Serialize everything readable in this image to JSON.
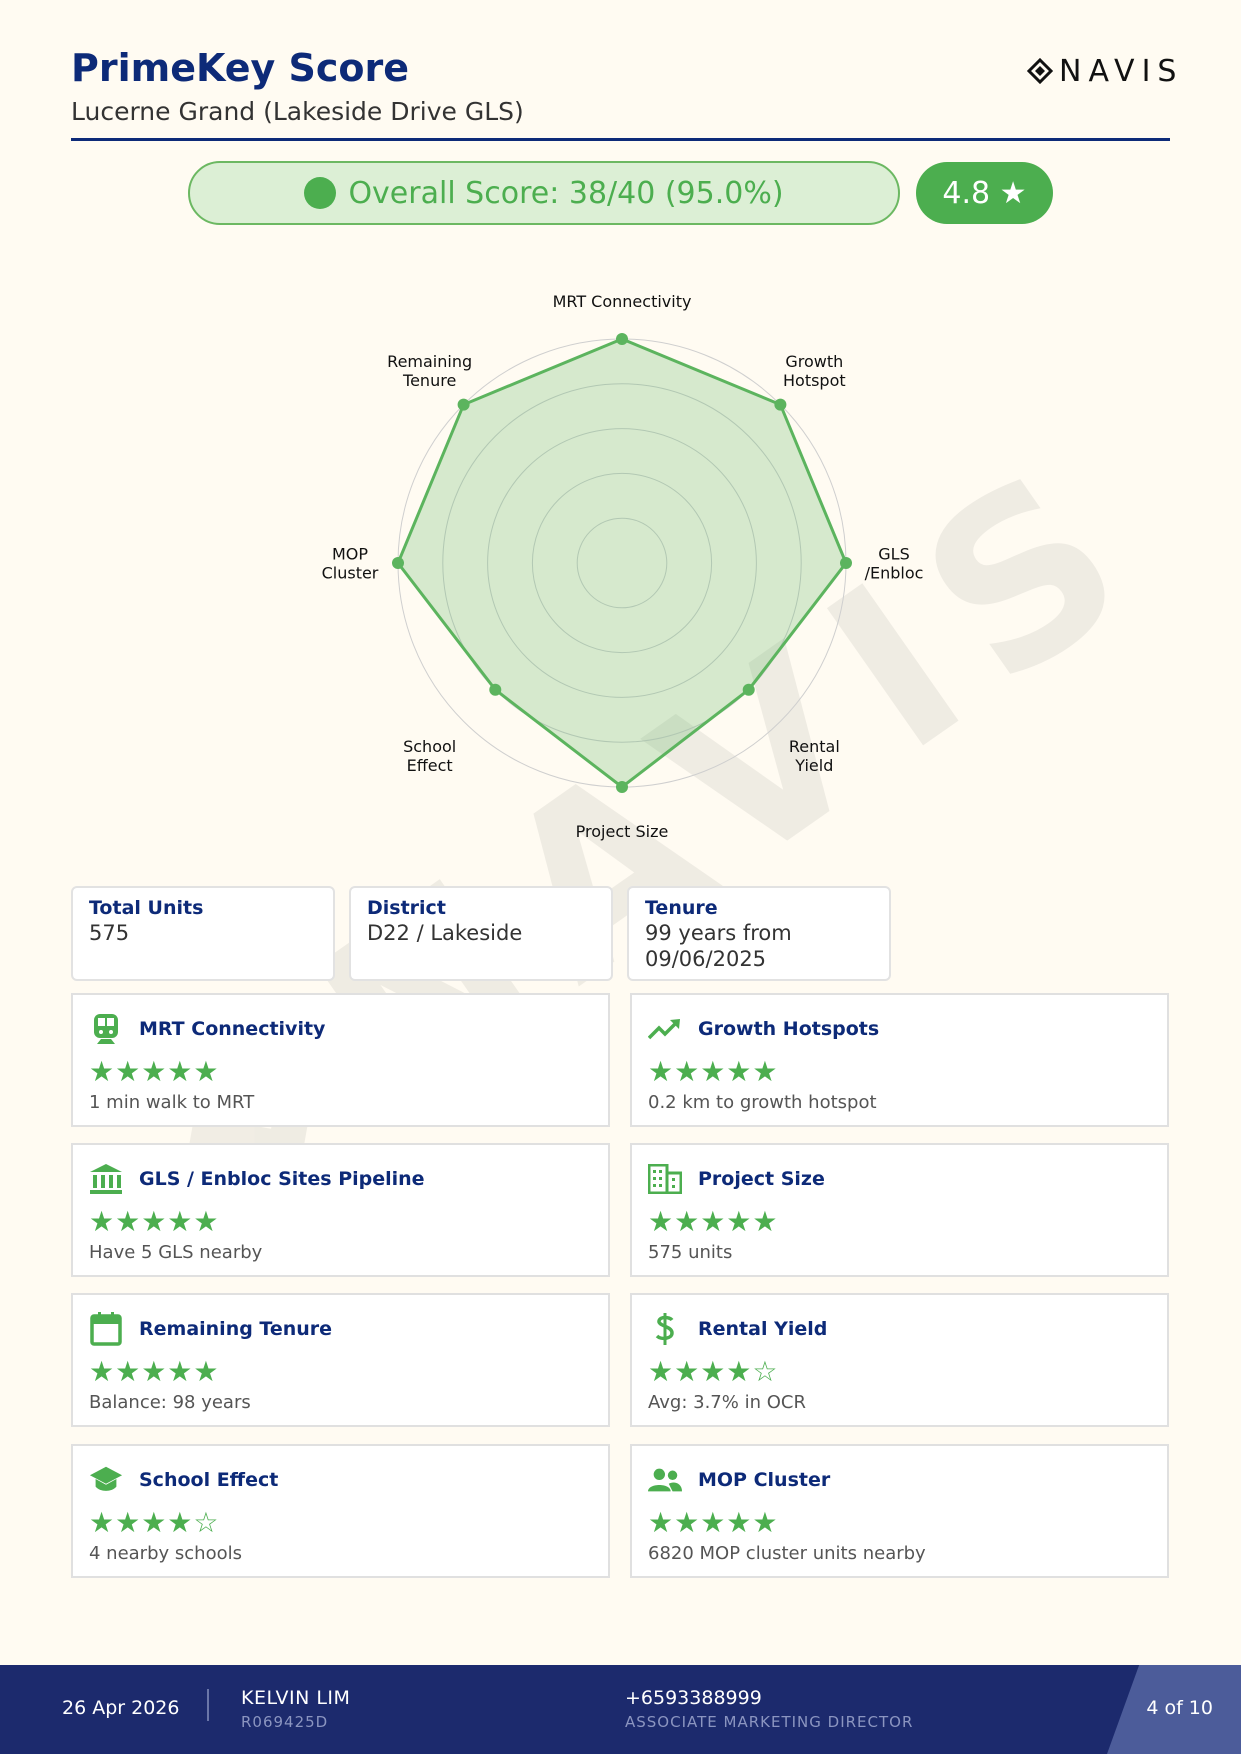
{
  "header": {
    "title": "PrimeKey Score",
    "subtitle": "Lucerne Grand (Lakeside Drive GLS)",
    "logo_text": "NAVIS"
  },
  "score": {
    "label": "Overall Score: 38/40 (95.0%)",
    "rating": "4.8 ★"
  },
  "chart_data": {
    "type": "radar",
    "axes": [
      "MRT Connectivity",
      "Growth Hotspot",
      "GLS /Enbloc",
      "Rental Yield",
      "Project Size",
      "School Effect",
      "MOP Cluster",
      "Remaining Tenure"
    ],
    "axis_labels": [
      [
        "MRT Connectivity"
      ],
      [
        "Growth",
        "Hotspot"
      ],
      [
        "GLS",
        "/Enbloc"
      ],
      [
        "Rental",
        "Yield"
      ],
      [
        "Project Size"
      ],
      [
        "School",
        "Effect"
      ],
      [
        "MOP",
        "Cluster"
      ],
      [
        "Remaining",
        "Tenure"
      ]
    ],
    "values": [
      5,
      5,
      5,
      4,
      5,
      4,
      5,
      5
    ],
    "rmax": 5,
    "rings": 5,
    "color": "#5cb45e"
  },
  "info": [
    {
      "label": "Total Units",
      "value": "575"
    },
    {
      "label": "District",
      "value": "D22 / Lakeside"
    },
    {
      "label": "Tenure",
      "value": "99 years from 09/06/2025"
    }
  ],
  "cards": [
    {
      "title": "MRT Connectivity",
      "icon": "train-icon",
      "stars": "★★★★★",
      "rating": 5,
      "desc": "1 min walk to MRT"
    },
    {
      "title": "Growth Hotspots",
      "icon": "trending-up-icon",
      "stars": "★★★★★",
      "rating": 5,
      "desc": "0.2 km to growth hotspot"
    },
    {
      "title": "GLS / Enbloc Sites Pipeline",
      "icon": "bank-icon",
      "stars": "★★★★★",
      "rating": 5,
      "desc": "Have 5 GLS nearby"
    },
    {
      "title": "Project Size",
      "icon": "building-icon",
      "stars": "★★★★★",
      "rating": 5,
      "desc": "575 units"
    },
    {
      "title": "Remaining Tenure",
      "icon": "calendar-icon",
      "stars": "★★★★★",
      "rating": 5,
      "desc": "Balance: 98 years"
    },
    {
      "title": "Rental Yield",
      "icon": "dollar-icon",
      "stars": "★★★★☆",
      "rating": 4,
      "desc": "Avg: 3.7% in OCR"
    },
    {
      "title": "School Effect",
      "icon": "graduation-cap-icon",
      "stars": "★★★★☆",
      "rating": 4,
      "desc": "4 nearby schools"
    },
    {
      "title": "MOP Cluster",
      "icon": "people-icon",
      "stars": "★★★★★",
      "rating": 5,
      "desc": "6820 MOP cluster units nearby"
    }
  ],
  "footer": {
    "date": "26 Apr 2026",
    "name": "KELVIN LIM",
    "id": "R069425D",
    "phone": "+6593388999",
    "role": "ASSOCIATE MARKETING DIRECTOR",
    "page": "4 of 10"
  },
  "colors": {
    "navy": "#0d2a78",
    "green": "#4cae4f",
    "footer": "#1c2a6d"
  }
}
